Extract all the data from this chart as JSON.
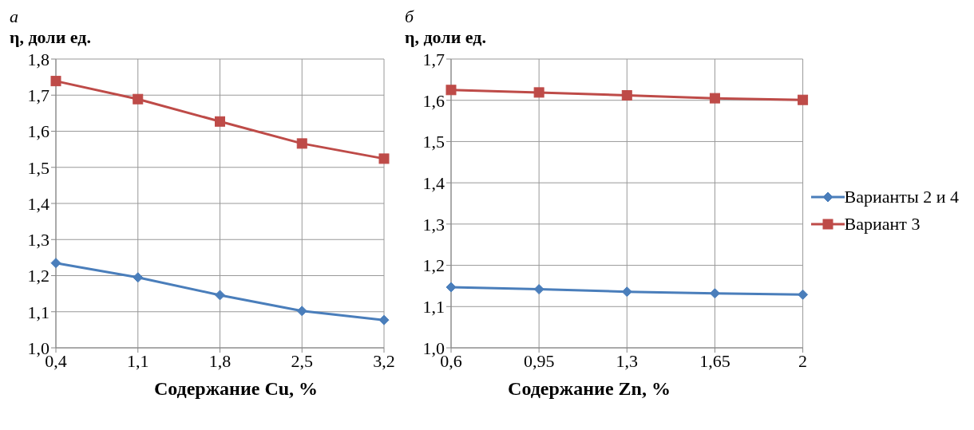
{
  "chart_data": [
    {
      "type": "line",
      "title": "а",
      "ylabel": "η, доли ед.",
      "xlabel": "Содержание Cu, %",
      "categories": [
        "0,4",
        "1,1",
        "1,8",
        "2,5",
        "3,2"
      ],
      "series": [
        {
          "color": "#4a7ebb",
          "marker": "diamond",
          "values": [
            1.235,
            1.195,
            1.146,
            1.102,
            1.077
          ]
        },
        {
          "color": "#be4b48",
          "marker": "square",
          "values": [
            1.739,
            1.689,
            1.627,
            1.566,
            1.524
          ]
        }
      ],
      "ylim": [
        1.0,
        1.8
      ],
      "yticks": [
        {
          "value": 1.0,
          "label": "1,0"
        },
        {
          "value": 1.1,
          "label": "1,1"
        },
        {
          "value": 1.2,
          "label": "1,2"
        },
        {
          "value": 1.3,
          "label": "1,3"
        },
        {
          "value": 1.4,
          "label": "1,4"
        },
        {
          "value": 1.5,
          "label": "1,5"
        },
        {
          "value": 1.6,
          "label": "1,6"
        },
        {
          "value": 1.7,
          "label": "1,7"
        },
        {
          "value": 1.8,
          "label": "1,8"
        }
      ],
      "grid": true,
      "legend": false
    },
    {
      "type": "line",
      "title": "б",
      "ylabel": "η, доли ед.",
      "xlabel": "Содержание Zn, %",
      "categories": [
        "0,6",
        "0,95",
        "1,3",
        "1,65",
        "2"
      ],
      "series": [
        {
          "name": "Варианты 2 и 4",
          "color": "#4a7ebb",
          "marker": "diamond",
          "values": [
            1.147,
            1.142,
            1.136,
            1.132,
            1.129
          ]
        },
        {
          "name": "Вариант 3",
          "color": "#be4b48",
          "marker": "square",
          "values": [
            1.625,
            1.619,
            1.612,
            1.605,
            1.601
          ]
        }
      ],
      "ylim": [
        1.0,
        1.7
      ],
      "yticks": [
        {
          "value": 1.0,
          "label": "1,0"
        },
        {
          "value": 1.1,
          "label": "1,1"
        },
        {
          "value": 1.2,
          "label": "1,2"
        },
        {
          "value": 1.3,
          "label": "1,3"
        },
        {
          "value": 1.4,
          "label": "1,4"
        },
        {
          "value": 1.5,
          "label": "1,5"
        },
        {
          "value": 1.6,
          "label": "1,6"
        },
        {
          "value": 1.7,
          "label": "1,7"
        }
      ],
      "grid": true,
      "legend": "right"
    }
  ]
}
